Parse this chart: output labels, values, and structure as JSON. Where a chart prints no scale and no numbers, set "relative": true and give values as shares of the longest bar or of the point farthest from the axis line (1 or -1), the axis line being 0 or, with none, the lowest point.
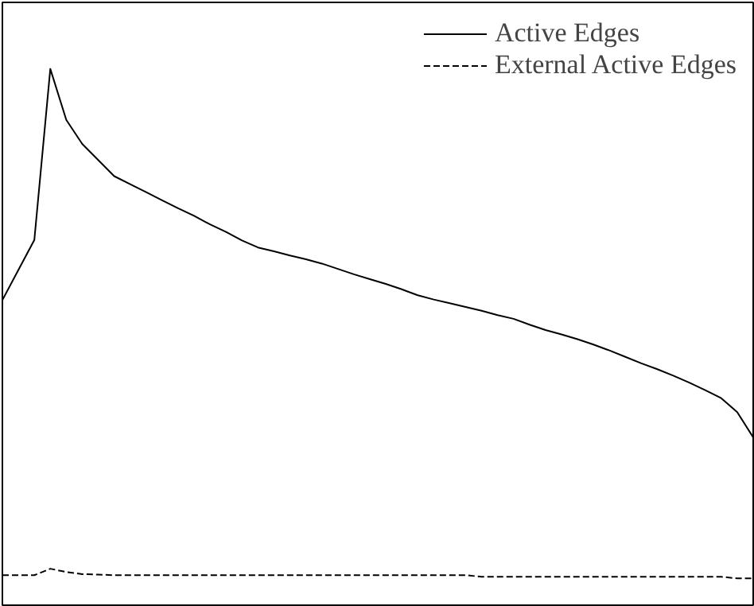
{
  "chart_data": {
    "type": "line",
    "relative": true,
    "legend": "top right",
    "grid": false,
    "categories": [
      null,
      null,
      null,
      null,
      null,
      null,
      null,
      null,
      null,
      null,
      null,
      null,
      null,
      null,
      null,
      null,
      null,
      null,
      null,
      null,
      null,
      null,
      null,
      null,
      null,
      null,
      null,
      null,
      null,
      null,
      null,
      null,
      null,
      null,
      null,
      null,
      null,
      null,
      null,
      null,
      null,
      null,
      null,
      null,
      null,
      null,
      null,
      null
    ],
    "series": [
      {
        "name": "Active Edges",
        "color": "#000000",
        "line_style": "solid",
        "values": [
          0.569,
          0.625,
          0.681,
          1.0,
          0.905,
          0.86,
          0.83,
          0.8,
          0.785,
          0.77,
          0.755,
          0.74,
          0.726,
          0.71,
          0.696,
          0.68,
          0.667,
          0.66,
          0.652,
          0.645,
          0.637,
          0.627,
          0.617,
          0.608,
          0.599,
          0.589,
          0.578,
          0.57,
          0.563,
          0.556,
          0.549,
          0.541,
          0.534,
          0.523,
          0.513,
          0.505,
          0.496,
          0.486,
          0.475,
          0.463,
          0.451,
          0.44,
          0.428,
          0.415,
          0.401,
          0.386,
          0.36,
          0.313
        ]
      },
      {
        "name": "External Active Edges",
        "color": "#000000",
        "line_style": "dashed",
        "values": [
          0.056,
          0.056,
          0.056,
          0.068,
          0.062,
          0.058,
          0.057,
          0.056,
          0.056,
          0.056,
          0.056,
          0.056,
          0.056,
          0.056,
          0.056,
          0.056,
          0.056,
          0.056,
          0.056,
          0.056,
          0.056,
          0.056,
          0.056,
          0.056,
          0.056,
          0.056,
          0.056,
          0.056,
          0.056,
          0.056,
          0.053,
          0.053,
          0.053,
          0.053,
          0.053,
          0.053,
          0.053,
          0.053,
          0.053,
          0.053,
          0.053,
          0.053,
          0.053,
          0.053,
          0.053,
          0.053,
          0.05,
          0.05
        ]
      }
    ]
  }
}
